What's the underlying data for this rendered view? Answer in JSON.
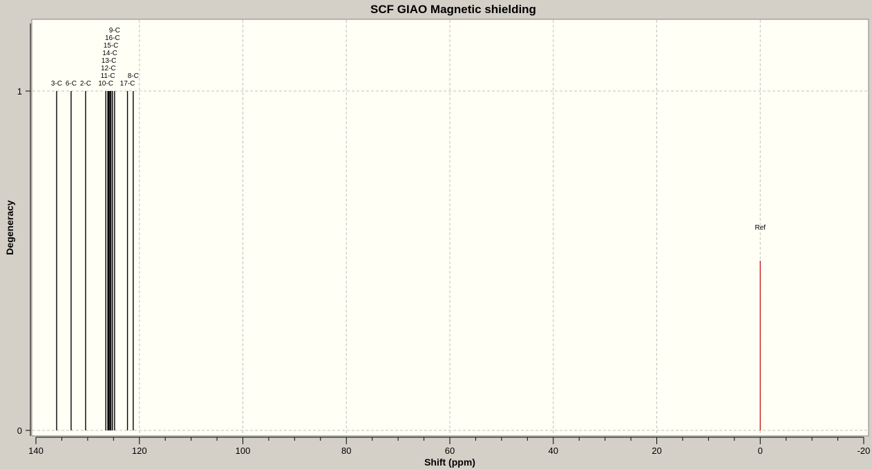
{
  "chart_data": {
    "type": "bar",
    "title": "SCF GIAO Magnetic shielding",
    "xlabel": "Shift (ppm)",
    "ylabel": "Degeneracy",
    "xlim": [
      140,
      -20
    ],
    "ylim": [
      0,
      1.2
    ],
    "x_ticks": [
      140,
      120,
      100,
      80,
      60,
      40,
      20,
      0,
      -20
    ],
    "y_ticks": [
      0,
      1
    ],
    "grid": true,
    "peaks": [
      {
        "label": "3-C",
        "shift": 136.0,
        "degeneracy": 1
      },
      {
        "label": "6-C",
        "shift": 133.2,
        "degeneracy": 1
      },
      {
        "label": "2-C",
        "shift": 130.4,
        "degeneracy": 1
      },
      {
        "label": "10-C",
        "shift": 126.5,
        "degeneracy": 1
      },
      {
        "label": "11-C",
        "shift": 126.1,
        "degeneracy": 1
      },
      {
        "label": "12-C",
        "shift": 126.0,
        "degeneracy": 1
      },
      {
        "label": "13-C",
        "shift": 125.9,
        "degeneracy": 1
      },
      {
        "label": "14-C",
        "shift": 125.7,
        "degeneracy": 1
      },
      {
        "label": "15-C",
        "shift": 125.5,
        "degeneracy": 1
      },
      {
        "label": "16-C",
        "shift": 125.2,
        "degeneracy": 1
      },
      {
        "label": "9-C",
        "shift": 124.8,
        "degeneracy": 1
      },
      {
        "label": "17-C",
        "shift": 122.3,
        "degeneracy": 1
      },
      {
        "label": "8-C",
        "shift": 121.2,
        "degeneracy": 1
      }
    ],
    "reference": {
      "label": "Ref",
      "shift": 0,
      "degeneracy": 0.5,
      "color": "#c00000"
    },
    "colors": {
      "peak": "#000000",
      "plot_background": "#fffff5",
      "frame": "#d4d0c8",
      "grid": "#c0c0c0"
    }
  }
}
